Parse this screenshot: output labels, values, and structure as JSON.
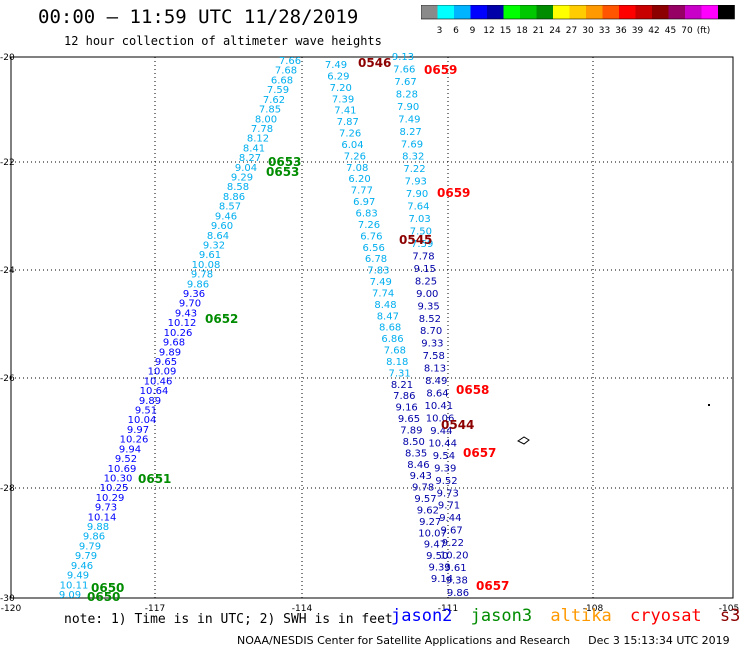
{
  "title": "00:00 – 11:59 UTC 11/28/2019",
  "subtitle": "12 hour collection of altimeter wave heights",
  "colorbar": {
    "colors": [
      "#8a8a8a",
      "#00ffff",
      "#00b4ff",
      "#0000ff",
      "#0000a8",
      "#00ff00",
      "#00c800",
      "#008c00",
      "#ffff00",
      "#ffcc00",
      "#ff9900",
      "#ff5500",
      "#ff0000",
      "#c80000",
      "#8c0000",
      "#960064",
      "#c800c8",
      "#ff00ff",
      "#000000"
    ],
    "labels": [
      "3",
      "6",
      "9",
      "12",
      "15",
      "18",
      "21",
      "24",
      "27",
      "30",
      "33",
      "36",
      "39",
      "42",
      "45",
      "70",
      "(ft)"
    ]
  },
  "axes": {
    "lon_labels": [
      "-120",
      "-117",
      "-114",
      "-111",
      "-108",
      "-105"
    ],
    "lat_labels": [
      "-20",
      "-22",
      "-24",
      "-26",
      "-28",
      "-30"
    ]
  },
  "tracks": {
    "left_a": [
      "7.66",
      "7.68",
      "6.68",
      "7.59",
      "7.62",
      "7.85",
      "8.00",
      "7.78",
      "8.12",
      "8.41",
      "8.27",
      "9.04",
      "9.29",
      "8.58",
      "8.86",
      "8.57",
      "9.46",
      "9.60",
      "8.64",
      "9.32",
      "9.61",
      "10.08",
      "9.78",
      "9.86",
      "9.36",
      "9.70",
      "9.43",
      "10.12",
      "10.26",
      "9.68",
      "9.89",
      "9.65",
      "10.09",
      "10.46",
      "10.64",
      "9.89",
      "9.51",
      "10.04",
      "9.97",
      "10.26",
      "9.94",
      "9.52",
      "10.69",
      "10.30",
      "10.25",
      "10.29",
      "9.73",
      "10.14",
      "9.88",
      "9.86",
      "9.79",
      "9.79",
      "9.46",
      "9.49",
      "10.11",
      "9.09"
    ],
    "mid_a": [
      "7.49",
      "6.29",
      "7.20",
      "7.39",
      "7.41",
      "7.87",
      "7.26",
      "6.04",
      "7.26",
      "7.08",
      "6.20",
      "7.77",
      "6.97",
      "6.83",
      "7.26",
      "6.76",
      "6.56",
      "6.78",
      "7.83",
      "7.49",
      "7.74",
      "8.48",
      "8.47",
      "8.68",
      "6.86",
      "7.68",
      "8.18",
      "7.31",
      "8.21",
      "7.86",
      "9.16",
      "9.65",
      "7.89",
      "8.50",
      "8.35",
      "8.46",
      "9.43",
      "9.78",
      "9.57",
      "9.62",
      "9.27",
      "10.07",
      "9.47",
      "9.50",
      "9.33",
      "9.14"
    ],
    "mid_b": [
      "9.13",
      "7.66",
      "7.67",
      "8.28",
      "7.90",
      "7.49",
      "8.27",
      "7.69",
      "8.32",
      "7.22",
      "7.93",
      "7.90",
      "7.64",
      "7.03",
      "7.50",
      "7.59",
      "7.78",
      "9.15",
      "8.25",
      "9.00",
      "9.35",
      "8.52",
      "8.70",
      "9.33",
      "7.58",
      "8.13",
      "8.49",
      "8.64",
      "10.41",
      "10.06",
      "9.44",
      "10.44",
      "9.54",
      "9.39",
      "9.52",
      "9.73",
      "9.71",
      "9.44",
      "9.67",
      "9.22",
      "10.20",
      "9.61",
      "9.38",
      "9.86"
    ]
  },
  "pass_times": [
    {
      "text": "0546",
      "sat": "s3a"
    },
    {
      "text": "0659",
      "sat": "cryosat"
    },
    {
      "text": "0653",
      "sat": "jason3"
    },
    {
      "text": "0653",
      "sat": "jason3"
    },
    {
      "text": "0659",
      "sat": "cryosat"
    },
    {
      "text": "0545",
      "sat": "s3a"
    },
    {
      "text": "0652",
      "sat": "jason3"
    },
    {
      "text": "0658",
      "sat": "cryosat"
    },
    {
      "text": "0544",
      "sat": "s3a"
    },
    {
      "text": "0657",
      "sat": "cryosat"
    },
    {
      "text": "0651",
      "sat": "jason3"
    },
    {
      "text": "0650",
      "sat": "jason3"
    },
    {
      "text": "0650",
      "sat": "jason3"
    },
    {
      "text": "0657",
      "sat": "cryosat"
    }
  ],
  "colors": {
    "jason2": "#0000ff",
    "jason3": "#008c00",
    "altika": "#ff9900",
    "cryosat": "#ff0000",
    "s3a": "#8c0000",
    "cyan": "#00aeef",
    "navy": "#0000a8"
  },
  "notes": "note:  1) Time is in UTC;  2) SWH is in feet",
  "legend": {
    "jason2": "jason2",
    "jason3": "jason3",
    "altika": "altika",
    "cryosat": "cryosat",
    "s3a": "s3a"
  },
  "credit": {
    "org": "NOAA/NESDIS Center for Satellite Applications and Research",
    "timestamp": "Dec  3 15:13:34 UTC 2019"
  }
}
